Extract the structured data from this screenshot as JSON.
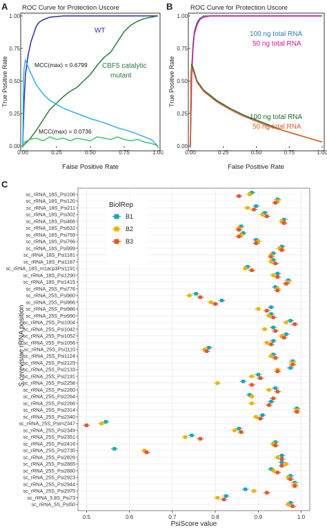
{
  "panel_letters": [
    "A",
    "B",
    "C"
  ],
  "colors": {
    "wt": "#2a2aa8",
    "cbf5": "#237a3a",
    "mcc_wt": "#2ab0e6",
    "mcc_cbf5": "#3cc46c",
    "ng100": "#2a7fb5",
    "ng50": "#d6158a",
    "mcc100": "#1f6b2e",
    "mcc50": "#e05a24",
    "b1": "#1aa6b7",
    "b2": "#e8b400",
    "b3": "#e8532b",
    "grid": "#e8e8e8"
  },
  "chart_data": [
    {
      "id": "A",
      "type": "line",
      "title": "ROC Curve for Protection Uscore",
      "xlabel": "False Positive Rate",
      "ylabel": "True Positive Rate",
      "xlim": [
        0,
        1
      ],
      "ylim": [
        0,
        1
      ],
      "xticks": [
        "0.00",
        "0.25",
        "0.50",
        "0.75",
        "1.00"
      ],
      "yticks": [
        "0.00",
        "0.25",
        "0.50",
        "0.75",
        "1.00"
      ],
      "annotations": [
        "WT",
        "CBF5 catalytic",
        "mutant",
        "MCC(max) = 0.6799",
        "MCC(max) = 0.0736"
      ],
      "series": [
        {
          "key": "wt",
          "name": "WT",
          "x": [
            0,
            0.01,
            0.02,
            0.04,
            0.06,
            0.08,
            0.1,
            0.12,
            0.15,
            0.2,
            0.3,
            0.5,
            0.75,
            0.9,
            1.0
          ],
          "y": [
            0,
            0.35,
            0.55,
            0.7,
            0.8,
            0.86,
            0.92,
            0.95,
            0.97,
            0.99,
            1.0,
            1.0,
            1.0,
            1.0,
            1.0
          ]
        },
        {
          "key": "cbf5",
          "name": "CBF5 catalytic mutant",
          "x": [
            0,
            0.05,
            0.1,
            0.15,
            0.2,
            0.25,
            0.3,
            0.35,
            0.4,
            0.45,
            0.5,
            0.55,
            0.6,
            0.65,
            0.7,
            0.75,
            0.8,
            0.85,
            0.9,
            0.95,
            1.0
          ],
          "y": [
            0,
            0.05,
            0.12,
            0.2,
            0.28,
            0.33,
            0.38,
            0.42,
            0.45,
            0.5,
            0.55,
            0.62,
            0.68,
            0.72,
            0.8,
            0.88,
            0.93,
            0.96,
            0.98,
            0.99,
            1.0
          ]
        },
        {
          "key": "mcc_wt",
          "name": "",
          "x": [
            0,
            0.005,
            0.01,
            0.02,
            0.05,
            0.1,
            0.15,
            0.2,
            0.3,
            0.4,
            0.5,
            0.6,
            0.7,
            0.8,
            0.9,
            0.95,
            1.0
          ],
          "y": [
            0,
            0.5,
            0.6,
            0.66,
            0.58,
            0.47,
            0.4,
            0.35,
            0.29,
            0.25,
            0.21,
            0.18,
            0.14,
            0.11,
            0.07,
            0.05,
            0.0
          ]
        },
        {
          "key": "mcc_cbf5",
          "name": "",
          "x": [
            0,
            0.05,
            0.1,
            0.15,
            0.2,
            0.25,
            0.3,
            0.35,
            0.4,
            0.45,
            0.5,
            0.55,
            0.6,
            0.65,
            0.7,
            0.75,
            0.8,
            0.85,
            0.9,
            0.95,
            1.0
          ],
          "y": [
            0.02,
            0.05,
            0.06,
            0.04,
            0.07,
            0.05,
            0.06,
            0.04,
            0.06,
            0.05,
            0.04,
            0.07,
            0.06,
            0.05,
            0.07,
            0.05,
            0.04,
            0.05,
            0.03,
            0.02,
            0.0
          ]
        }
      ]
    },
    {
      "id": "B",
      "type": "line",
      "title": "ROC Curve for Protection Uscore",
      "xlabel": "False Positive Rate",
      "ylabel": "True Positive Rate",
      "xlim": [
        0,
        1
      ],
      "ylim": [
        0,
        1
      ],
      "xticks": [
        "0.00",
        "0.25",
        "0.50",
        "0.75",
        "1.00"
      ],
      "yticks": [
        "0.00",
        "0.25",
        "0.50",
        "0.75",
        "1.00"
      ],
      "annotations": [
        "100 ng total RNA",
        "50 ng total RNA",
        "100 ng total RNA",
        "50 ng total RNA"
      ],
      "series": [
        {
          "key": "ng100",
          "name": "100 ng total RNA",
          "x": [
            0,
            0.01,
            0.02,
            0.03,
            0.05,
            0.07,
            0.1,
            0.15,
            1.0
          ],
          "y": [
            0,
            0.6,
            0.78,
            0.88,
            0.95,
            0.98,
            1.0,
            1.0,
            1.0
          ]
        },
        {
          "key": "ng50",
          "name": "50 ng total RNA",
          "x": [
            0,
            0.01,
            0.02,
            0.03,
            0.05,
            0.07,
            0.1,
            0.15,
            1.0
          ],
          "y": [
            0,
            0.55,
            0.75,
            0.86,
            0.93,
            0.97,
            0.99,
            1.0,
            1.0
          ]
        },
        {
          "key": "mcc100",
          "name": "100 ng total RNA",
          "x": [
            0,
            0.005,
            0.01,
            0.02,
            0.05,
            0.1,
            0.2,
            0.3,
            0.4,
            0.5,
            0.6,
            0.7,
            0.8,
            0.9,
            1.0
          ],
          "y": [
            0,
            0.55,
            0.63,
            0.6,
            0.5,
            0.43,
            0.35,
            0.29,
            0.24,
            0.2,
            0.16,
            0.12,
            0.09,
            0.06,
            0.03
          ]
        },
        {
          "key": "mcc50",
          "name": "50 ng total RNA",
          "x": [
            0,
            0.005,
            0.01,
            0.02,
            0.05,
            0.1,
            0.2,
            0.3,
            0.4,
            0.5,
            0.6,
            0.7,
            0.8,
            0.9,
            1.0
          ],
          "y": [
            0,
            0.52,
            0.6,
            0.58,
            0.49,
            0.42,
            0.34,
            0.28,
            0.23,
            0.19,
            0.15,
            0.12,
            0.09,
            0.06,
            0.03
          ]
        }
      ]
    },
    {
      "id": "C",
      "type": "scatter",
      "xlabel": "PsiScore value",
      "ylabel_italic": "S.cerevisiae",
      "ylabel": " rRNA position",
      "xlim": [
        0.48,
        1.02
      ],
      "xticks": [
        0.5,
        0.6,
        0.7,
        0.8,
        0.9,
        1.0
      ],
      "xtick_labels": [
        "0.5",
        "0.6",
        "0.7",
        "0.8",
        "0.9",
        "1.0"
      ],
      "legend_title": "BiolRep",
      "legend": [
        "B1",
        "B2",
        "B3"
      ],
      "categories": [
        "sc_rRNA_18S_Psi106",
        "sc_rRNA_18S_Psi120",
        "sc_rRNA_18S_Psi211",
        "sc_rRNA_18S_Psi302",
        "sc_rRNA_18S_Psi466",
        "sc_rRNA_18S_Psi632",
        "sc_rRNA_18S_Psi759",
        "sc_rRNA_18S_Psi766",
        "sc_rRNA_18S_Psi999",
        "sc_rRNA_18S_Psi1181",
        "sc_rRNA_18S_Psi1187",
        "sc_rRNA_18S_m1acp3Psi1191",
        "sc_rRNA_18S_Psi1290",
        "sc_rRNA_18S_Psi1415",
        "sc_rRNA_25S_Psi776",
        "sc_rRNA_25S_Psi960",
        "sc_rRNA_25S_Psi966",
        "sc_rRNA_25S_Psi986",
        "sc_rRNA_25S_Psi990",
        "sc_rRNA_25S_Psi1004",
        "sc_rRNA_25S_Psi1042",
        "sc_rRNA_25S_Psi1052",
        "sc_rRNA_25S_Psi1056",
        "sc_rRNA_25S_Psi1110",
        "sc_rRNA_25S_Psi1124",
        "sc_rRNA_25S_Psi2129",
        "sc_rRNA_25S_Psi2133",
        "sc_rRNA_25S_Psi2191",
        "sc_rRNA_25S_Psi2258",
        "sc_rRNA_25S_Psi2260",
        "sc_rRNA_25S_Psi2264",
        "sc_rRNA_25S_Psi2266",
        "sc_rRNA_25S_Psi2314",
        "sc_rRNA_25S_Psi2340",
        "sc_rRNA_25S_Psim2347",
        "sc_rRNA_25S_Psi2349",
        "sc_rRNA_25S_Psi2351",
        "sc_rRNA_25S_Psi2416",
        "sc_rRNA_25S_Psi2735",
        "sc_rRNA_25S_Psi2826",
        "sc_rRNA_25S_Psi2865",
        "sc_rRNA_25S_Psi2880",
        "sc_rRNA_25S_Psi2923",
        "sc_rRNA_25S_Psi2944",
        "sc_rRNA_25S_Psi2975",
        "sc_rRNA_5.8S_Psi73",
        "sc_rRNA_5S_Psi50"
      ],
      "series": [
        {
          "name": "B1",
          "values": [
            0.885,
            0.945,
            0.895,
            0.915,
            0.96,
            0.86,
            0.865,
            0.895,
            0.955,
            0.935,
            0.935,
            0.875,
            0.945,
            0.97,
            0.94,
            0.755,
            0.815,
            0.93,
            0.93,
            0.975,
            0.935,
            0.965,
            0.935,
            0.785,
            0.935,
            0.98,
            0.975,
            0.9,
            0.865,
            0.94,
            0.88,
            0.93,
            0.99,
            0.91,
            0.545,
            0.855,
            0.745,
            0.94,
            0.565,
            0.955,
            0.955,
            0.93,
            0.975,
            0.985,
            0.87,
            0.825,
            0.975
          ]
        },
        {
          "name": "B2",
          "values": [
            0.88,
            0.945,
            0.875,
            0.91,
            0.955,
            0.855,
            0.86,
            0.9,
            0.95,
            0.93,
            0.93,
            0.87,
            0.935,
            0.97,
            0.945,
            0.74,
            0.79,
            0.9,
            0.925,
            0.965,
            0.915,
            0.955,
            0.92,
            0.775,
            0.93,
            0.98,
            0.945,
            0.885,
            0.805,
            0.925,
            0.885,
            0.885,
            0.99,
            0.895,
            0.535,
            0.845,
            0.73,
            0.935,
            0.635,
            0.945,
            0.965,
            0.935,
            0.97,
            0.985,
            0.89,
            0.805,
            0.97
          ]
        },
        {
          "name": "B3",
          "values": [
            0.855,
            0.94,
            0.89,
            0.92,
            0.96,
            0.855,
            0.855,
            0.895,
            0.955,
            0.93,
            0.94,
            0.885,
            0.945,
            0.965,
            0.945,
            0.765,
            0.8,
            0.92,
            0.935,
            0.985,
            0.94,
            0.96,
            0.93,
            0.78,
            0.94,
            0.98,
            0.945,
            0.905,
            0.885,
            0.945,
            0.935,
            0.925,
            0.99,
            0.905,
            0.5,
            0.86,
            0.765,
            0.94,
            0.64,
            0.955,
            0.955,
            0.945,
            0.975,
            0.985,
            0.92,
            0.82,
            0.98
          ]
        }
      ]
    }
  ]
}
